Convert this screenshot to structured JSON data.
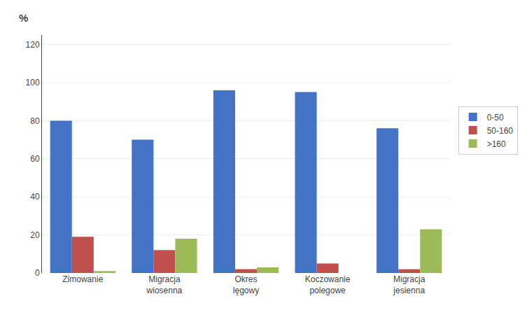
{
  "chart_data": {
    "type": "bar",
    "categories": [
      "Zimowanie",
      "Migracja\nwiosenna",
      "Okres\nlęgowy",
      "Koczowanie\npolegowe",
      "Migracja\njesienna"
    ],
    "series": [
      {
        "name": "0-50",
        "color": "#4472C4",
        "values": [
          80,
          70,
          96,
          95,
          76
        ]
      },
      {
        "name": "50-160",
        "color": "#C0504D",
        "values": [
          19,
          12,
          2,
          5,
          2
        ]
      },
      {
        "name": ">160",
        "color": "#9BBB59",
        "values": [
          1,
          18,
          3,
          0,
          23
        ]
      }
    ],
    "ylabel": "%",
    "ylim": [
      0,
      125
    ],
    "yticks": [
      0,
      20,
      40,
      60,
      80,
      100,
      120
    ],
    "grid": true,
    "legend": "right"
  }
}
